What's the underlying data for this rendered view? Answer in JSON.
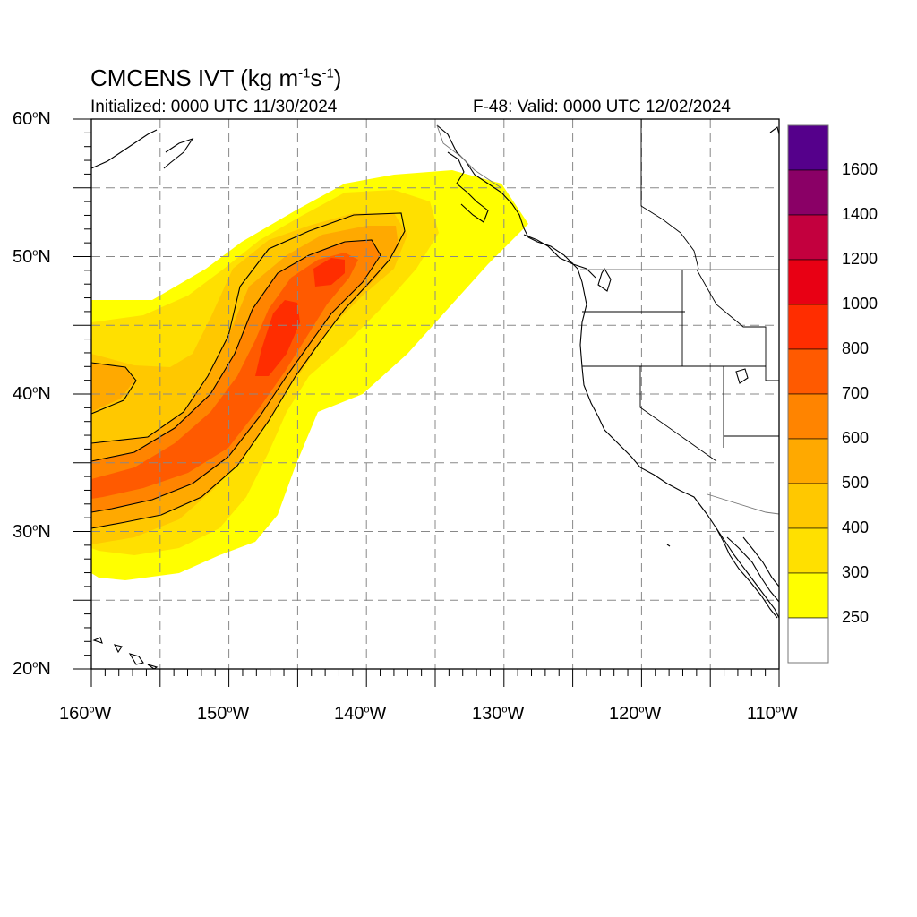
{
  "title": {
    "prefix": "CMCENS IVT (kg m",
    "exp1": "-1",
    "mid": "s",
    "exp2": "-1",
    "suffix": ")"
  },
  "initialized": "Initialized: 0000 UTC 11/30/2024",
  "valid": "F-48: Valid: 0000 UTC 12/02/2024",
  "map": {
    "lon_range": [
      -160,
      -110
    ],
    "lat_range": [
      20,
      60
    ],
    "grid_lon": [
      -155,
      -150,
      -145,
      -140,
      -135,
      -130,
      -125,
      -120,
      -115
    ],
    "grid_lat": [
      25,
      30,
      35,
      40,
      45,
      50,
      55
    ],
    "lat_labels": [
      {
        "deg": "60",
        "hemi": "N"
      },
      {
        "deg": "50",
        "hemi": "N"
      },
      {
        "deg": "40",
        "hemi": "N"
      },
      {
        "deg": "30",
        "hemi": "N"
      },
      {
        "deg": "20",
        "hemi": "N"
      }
    ],
    "lon_labels": [
      {
        "deg": "160",
        "hemi": "W"
      },
      {
        "deg": "150",
        "hemi": "W"
      },
      {
        "deg": "140",
        "hemi": "W"
      },
      {
        "deg": "130",
        "hemi": "W"
      },
      {
        "deg": "120",
        "hemi": "W"
      },
      {
        "deg": "110",
        "hemi": "W"
      }
    ],
    "river_axis": [
      {
        "lon": -160,
        "lat": 33.0
      },
      {
        "lon": -155,
        "lat": 35.0
      },
      {
        "lon": -150,
        "lat": 38.0
      },
      {
        "lon": -147,
        "lat": 42.0
      },
      {
        "lon": -144,
        "lat": 46.5
      },
      {
        "lon": -141,
        "lat": 49.5
      },
      {
        "lon": -138,
        "lat": 52.0
      },
      {
        "lon": -133,
        "lat": 54.5
      },
      {
        "lon": -129,
        "lat": 52.5
      }
    ]
  },
  "colorbar": {
    "labels": [
      "1600",
      "1400",
      "1200",
      "1000",
      "800",
      "700",
      "600",
      "500",
      "400",
      "300",
      "250"
    ],
    "colors": [
      "#55008b",
      "#8a0066",
      "#c3003e",
      "#e80014",
      "#ff2d00",
      "#ff5a00",
      "#ff8400",
      "#ffa900",
      "#ffc800",
      "#ffe000",
      "#ffff00",
      "#ffffff"
    ]
  }
}
